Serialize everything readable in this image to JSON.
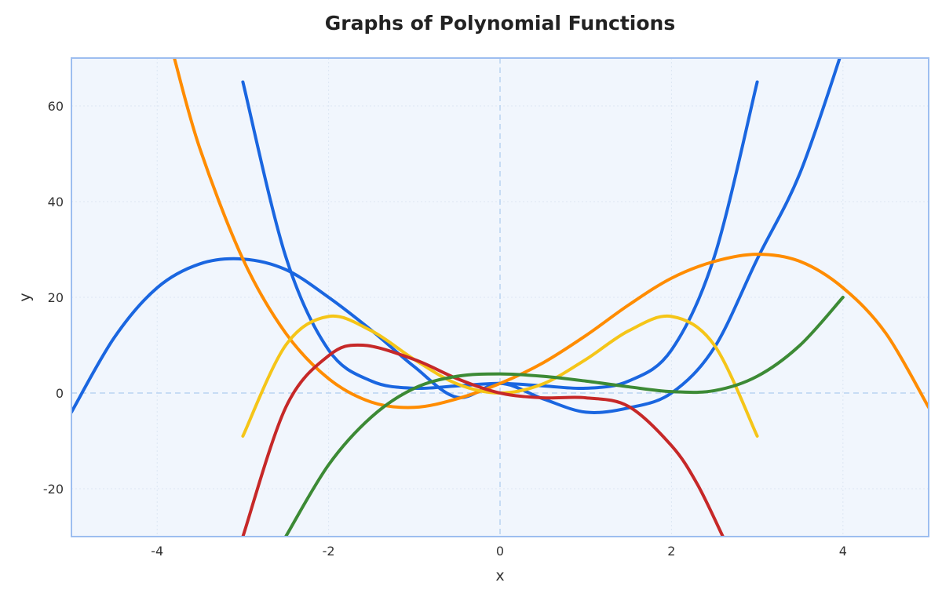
{
  "chart_data": {
    "type": "line",
    "title": "Graphs of Polynomial Functions",
    "xlabel": "x",
    "ylabel": "y",
    "xlim": [
      -5,
      5
    ],
    "ylim": [
      -30,
      70
    ],
    "xticks": [
      -4,
      -2,
      0,
      2,
      4
    ],
    "yticks": [
      -20,
      0,
      20,
      40,
      60
    ],
    "grid": true,
    "zero_lines": true,
    "colors": {
      "plot_background": "#f1f6fd",
      "frame": "#9dbef0",
      "grid": "#dde6f3",
      "zero_line": "#b9d3f2"
    },
    "series": [
      {
        "color": "#1a66e0",
        "x": [
          -5,
          -4.5,
          -4,
          -3.5,
          -3,
          -2.5,
          -2,
          -1.5,
          -1,
          -0.5,
          0,
          0.5,
          1,
          1.5,
          2,
          2.5,
          3,
          3.5,
          4
        ],
        "y": [
          -4,
          11.6,
          22,
          27,
          28,
          25.8,
          20,
          13.1,
          5.5,
          -0.9,
          2,
          -1.2,
          -4,
          -3.1,
          0,
          9.5,
          28,
          46,
          72
        ]
      },
      {
        "color": "#1a66e0",
        "x": [
          -3,
          -2.5,
          -2,
          -1.5,
          -1,
          -0.5,
          0,
          0.5,
          1,
          1.5,
          2,
          2.5,
          3
        ],
        "y": [
          65,
          28.5,
          9,
          2.5,
          1,
          1.5,
          2,
          1.5,
          1,
          2.5,
          9,
          28.5,
          65
        ]
      },
      {
        "color": "#ff8c00",
        "x": [
          -3.8,
          -3.5,
          -3,
          -2.5,
          -2,
          -1.5,
          -1,
          -0.5,
          0,
          0.5,
          1,
          1.5,
          2,
          2.5,
          3,
          3.5,
          4,
          4.5,
          5
        ],
        "y": [
          70,
          51,
          28,
          12.5,
          3,
          -1.9,
          -3,
          -1.2,
          2,
          6.3,
          12,
          18.4,
          24,
          27.5,
          29,
          27.5,
          22,
          12.5,
          -3
        ]
      },
      {
        "color": "#f5c518",
        "x": [
          -3,
          -2.5,
          -2,
          -1.5,
          -1,
          -0.5,
          0,
          0.5,
          1,
          1.5,
          2,
          2.5,
          3
        ],
        "y": [
          -9,
          10,
          16,
          13,
          7,
          1.9,
          0,
          1.9,
          7,
          13,
          16,
          10,
          -9
        ]
      },
      {
        "color": "#c62828",
        "x": [
          -3,
          -2.5,
          -2,
          -1.6,
          -1,
          -0.5,
          0,
          0.5,
          1,
          1.5,
          2,
          2.3,
          2.6
        ],
        "y": [
          -30,
          -3,
          7.8,
          10,
          7,
          3,
          0,
          -1,
          -1,
          -2.8,
          -11,
          -19,
          -30
        ]
      },
      {
        "color": "#3c8a35",
        "x": [
          -2.5,
          -2,
          -1.5,
          -1,
          -0.5,
          0,
          0.5,
          1,
          1.5,
          2,
          2.5,
          3,
          3.5,
          4
        ],
        "y": [
          -30,
          -15,
          -5,
          1,
          3.5,
          4,
          3.5,
          2.5,
          1.3,
          0.3,
          0.5,
          3.5,
          10,
          20
        ]
      }
    ]
  }
}
